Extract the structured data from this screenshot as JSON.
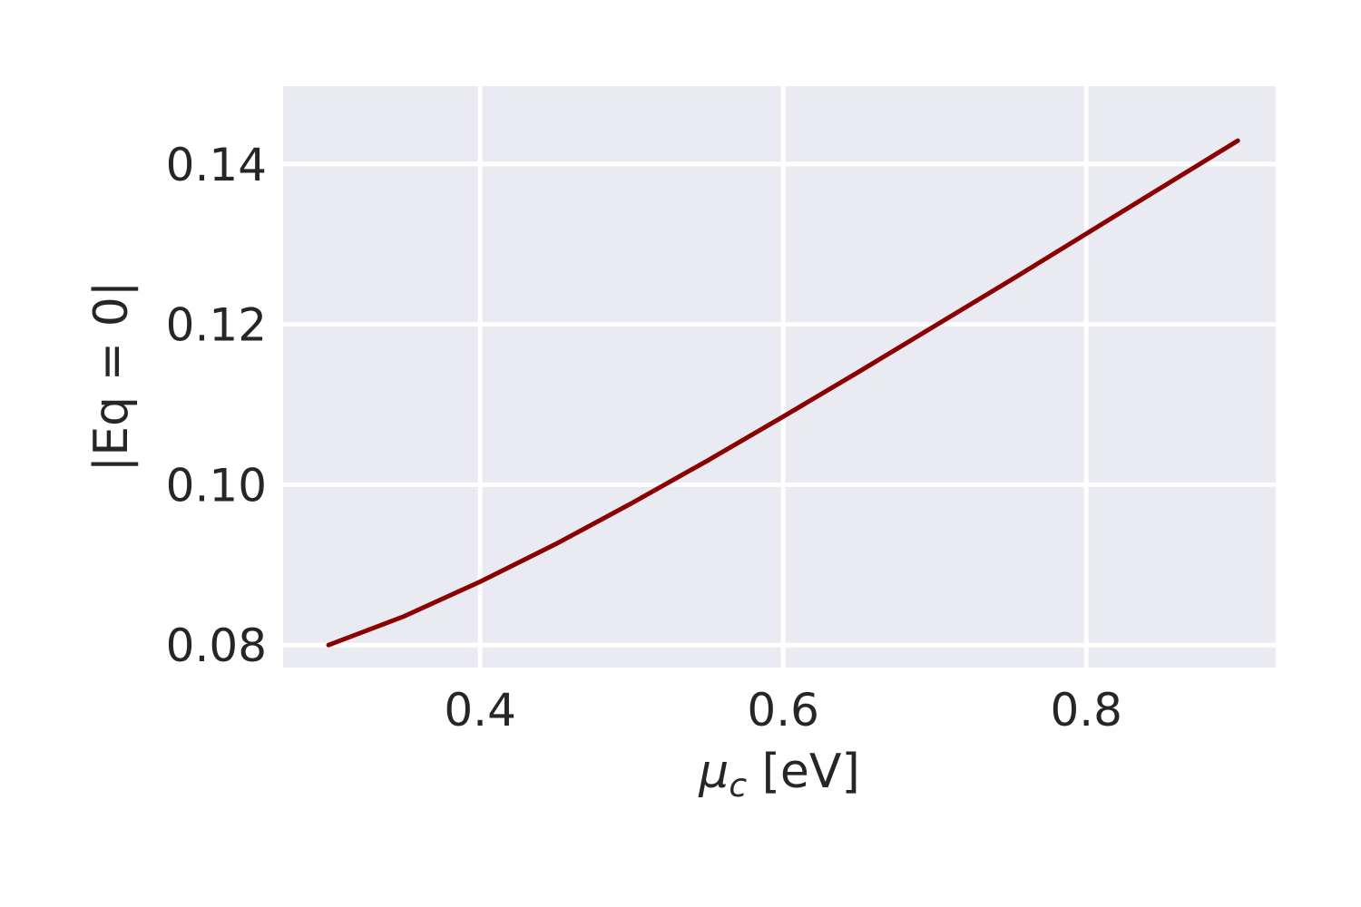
{
  "chart_data": {
    "type": "line",
    "title": "",
    "xlabel": "μc [eV]",
    "xlabel_main": "μ",
    "xlabel_sub": "c",
    "xlabel_unit": " [eV]",
    "ylabel": "|Eq = 0|",
    "xlim": [
      0.27,
      0.925
    ],
    "ylim": [
      0.0772,
      0.1497
    ],
    "xticks": [
      0.4,
      0.6,
      0.8
    ],
    "xtick_labels": [
      "0.4",
      "0.6",
      "0.8"
    ],
    "yticks": [
      0.08,
      0.1,
      0.12,
      0.14
    ],
    "ytick_labels": [
      "0.08",
      "0.10",
      "0.12",
      "0.14"
    ],
    "grid": true,
    "background": "#eaeaf2",
    "series": [
      {
        "color": "#8b0000",
        "x": [
          0.3,
          0.35,
          0.4,
          0.45,
          0.5,
          0.55,
          0.6,
          0.65,
          0.7,
          0.75,
          0.8,
          0.85,
          0.9
        ],
        "y": [
          0.08,
          0.0836,
          0.0879,
          0.0926,
          0.0977,
          0.103,
          0.1085,
          0.1141,
          0.1198,
          0.1255,
          0.1313,
          0.1371,
          0.1429
        ]
      }
    ]
  }
}
